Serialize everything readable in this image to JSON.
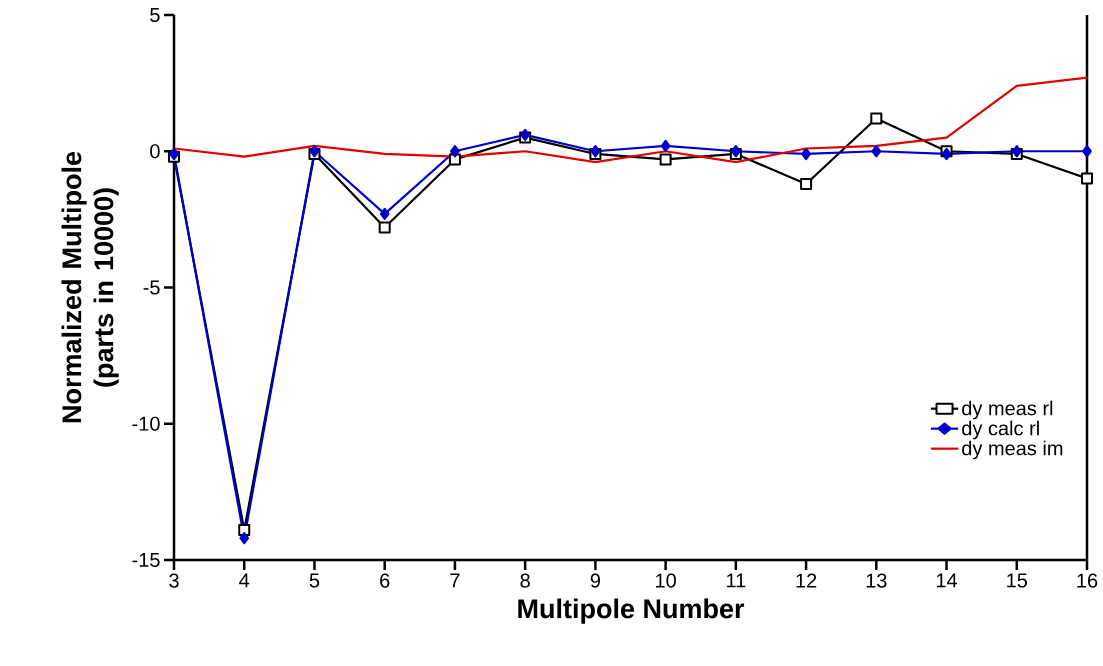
{
  "chart_data": {
    "type": "line",
    "xlabel": "Multipole Number",
    "ylabel": "Normalized Multipole (parts in 10000)",
    "x": [
      3,
      4,
      5,
      6,
      7,
      8,
      9,
      10,
      11,
      12,
      13,
      14,
      15,
      16
    ],
    "series": [
      {
        "name": "dy meas rl",
        "color": "#000000",
        "marker": "square",
        "values": [
          -0.2,
          -13.9,
          -0.1,
          -2.8,
          -0.3,
          0.5,
          -0.1,
          -0.3,
          -0.1,
          -1.2,
          1.2,
          0.0,
          -0.1,
          -1.0
        ]
      },
      {
        "name": "dy calc rl",
        "color": "#0000cc",
        "marker": "diamond",
        "values": [
          -0.1,
          -14.2,
          0.0,
          -2.3,
          0.0,
          0.6,
          0.0,
          0.2,
          0.0,
          -0.1,
          0.0,
          -0.1,
          0.0,
          0.0
        ]
      },
      {
        "name": "dy meas im",
        "color": "#e00000",
        "marker": "none",
        "values": [
          0.1,
          -0.2,
          0.2,
          -0.1,
          -0.2,
          0.0,
          -0.4,
          0.0,
          -0.4,
          0.1,
          0.2,
          0.5,
          2.4,
          2.7
        ]
      }
    ],
    "xlim": [
      3,
      16
    ],
    "ylim": [
      -15,
      5
    ],
    "xticks": [
      3,
      4,
      5,
      6,
      7,
      8,
      9,
      10,
      11,
      12,
      13,
      14,
      15,
      16
    ],
    "yticks": [
      -15,
      -10,
      -5,
      0,
      5
    ],
    "grid": false,
    "legend": "bottom right"
  }
}
